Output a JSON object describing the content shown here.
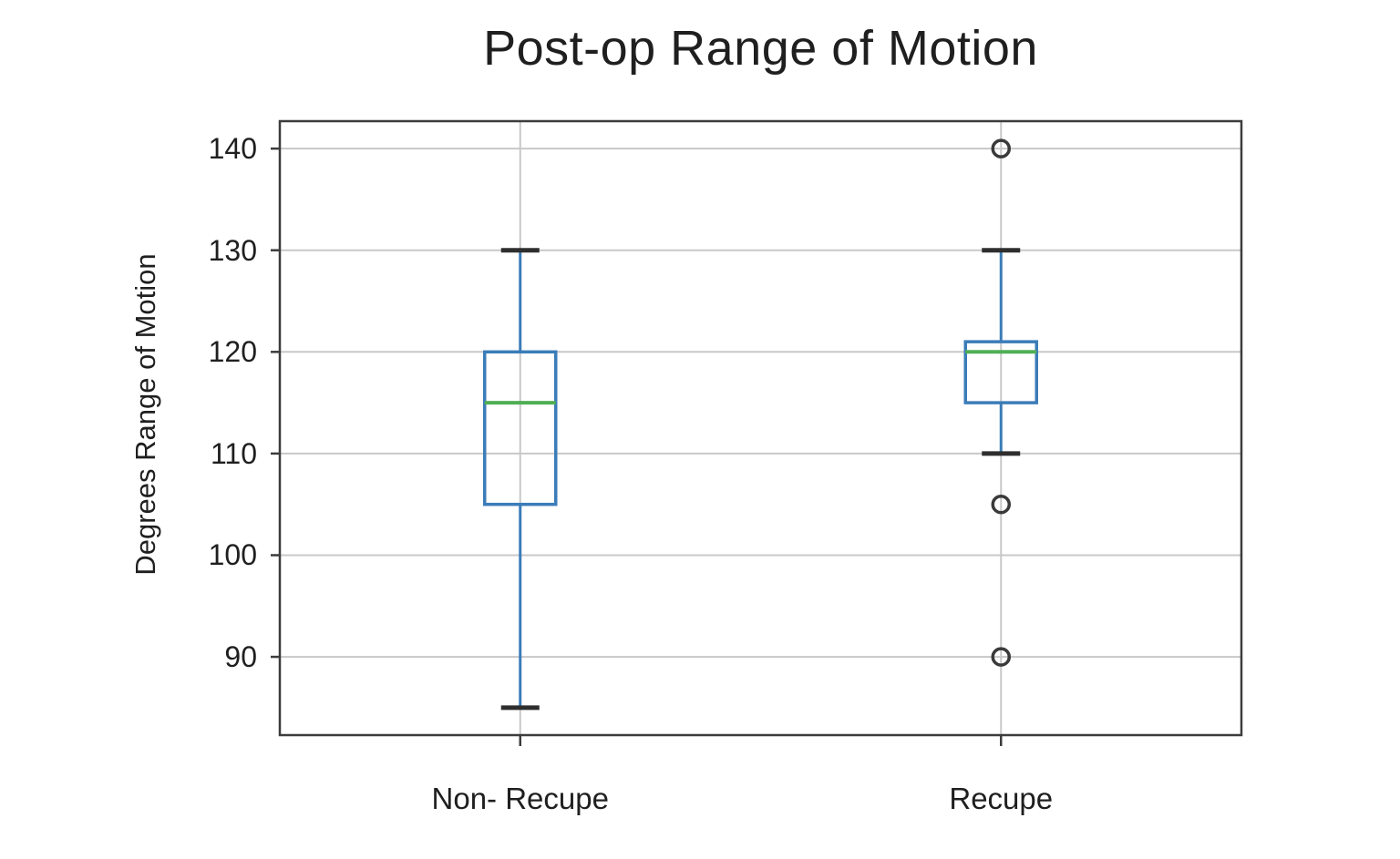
{
  "page": {
    "background": "#ffffff"
  },
  "chart_data": {
    "type": "boxplot",
    "title": "Post-op Range of Motion",
    "xlabel": "",
    "ylabel": "Degrees Range of Motion",
    "categories": [
      "Non- Recupe",
      "Recupe"
    ],
    "yticks": [
      90,
      100,
      110,
      120,
      130,
      140
    ],
    "ytick_labels": [
      "90",
      "100",
      "110",
      "120",
      "130",
      "140"
    ],
    "ylim": [
      82.3,
      142.7
    ],
    "grid": true,
    "legend": "none",
    "series": [
      {
        "name": "Non- Recupe",
        "whisker_low": 85,
        "q1": 105,
        "median": 115,
        "q3": 120,
        "whisker_high": 130,
        "outliers": []
      },
      {
        "name": "Recupe",
        "whisker_low": 110,
        "q1": 115,
        "median": 120,
        "q3": 121,
        "whisker_high": 130,
        "outliers": [
          140,
          105,
          90
        ]
      }
    ],
    "colors": {
      "box": "#3b7cb8",
      "whisker": "#3b7cb8",
      "median": "#4fae54",
      "cap": "#2e2e2e",
      "outlier": "#3a3a3a",
      "grid": "#c8c8c8",
      "axis": "#3c3c3c",
      "text": "#1f1f1f"
    }
  }
}
